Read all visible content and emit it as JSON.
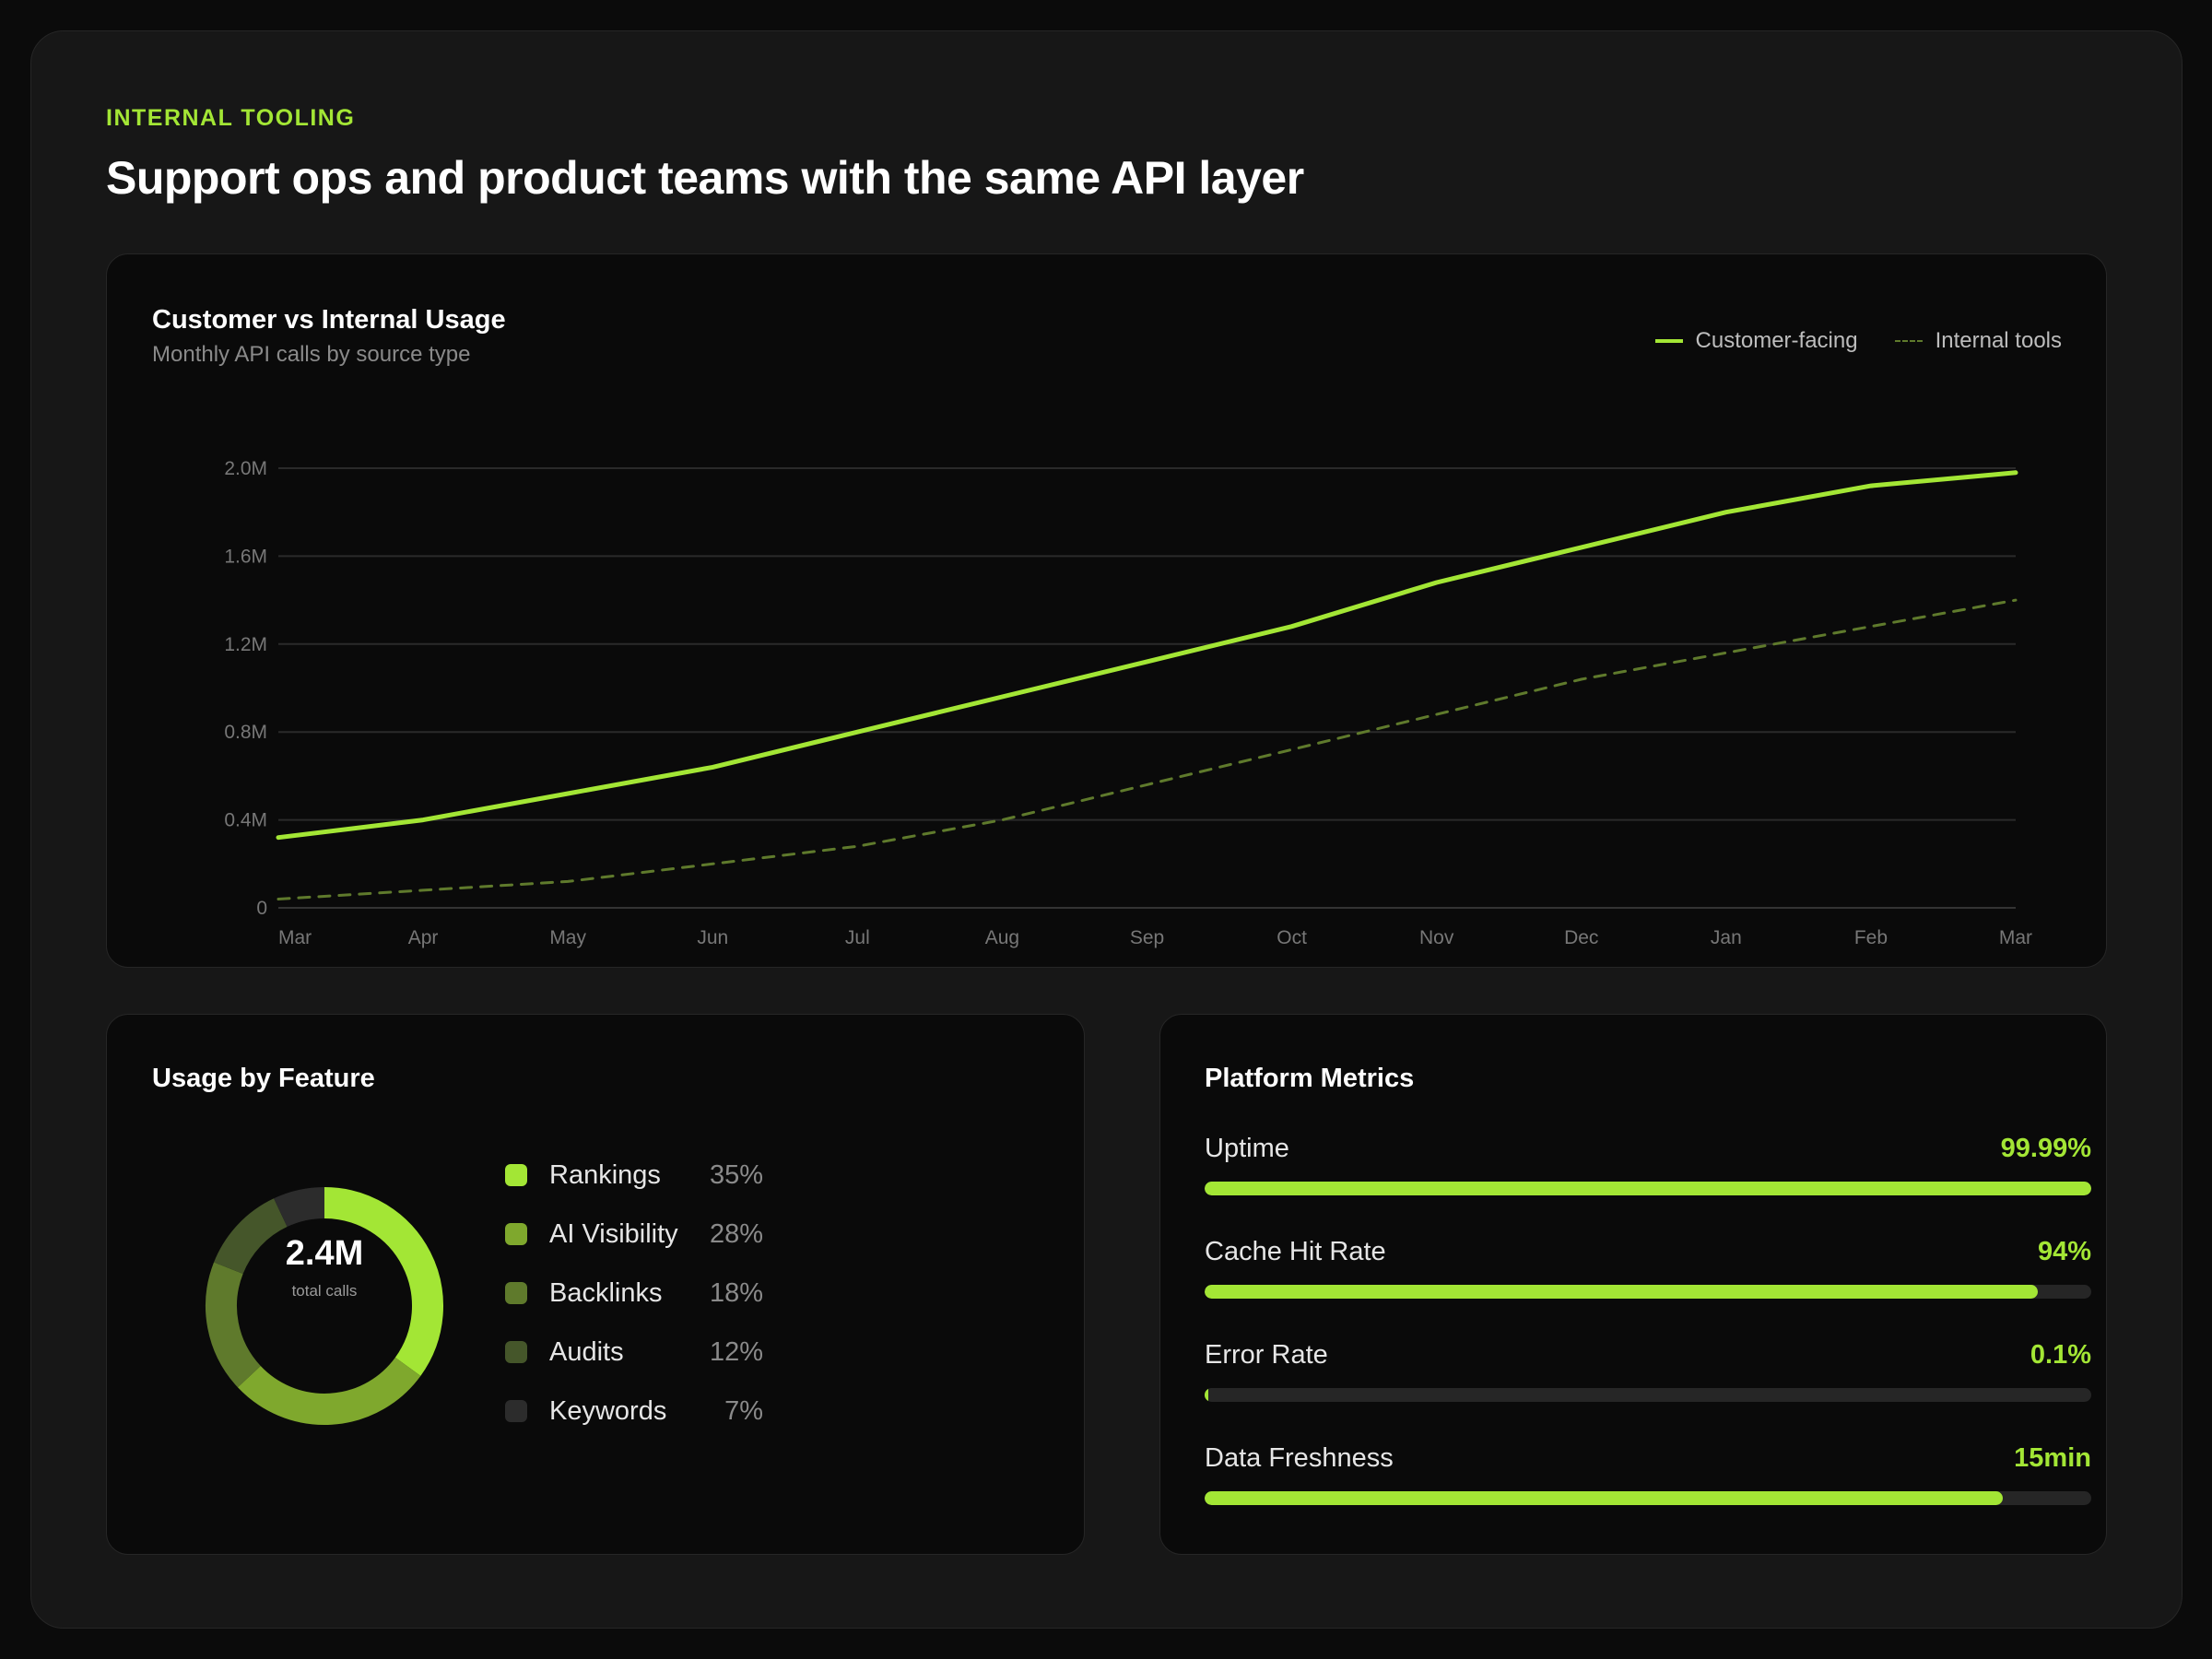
{
  "header": {
    "eyebrow": "INTERNAL TOOLING",
    "title": "Support ops and product teams with the same API layer"
  },
  "usage_chart": {
    "title": "Customer vs Internal Usage",
    "subtitle": "Monthly API calls by source type",
    "legend": {
      "customer": "Customer-facing",
      "internal": "Internal tools"
    }
  },
  "feature_panel": {
    "title": "Usage by Feature",
    "total_value": "2.4M",
    "total_caption": "total calls",
    "items": [
      {
        "label": "Rankings",
        "pct": "35%",
        "color": "#a3e635"
      },
      {
        "label": "AI Visibility",
        "pct": "28%",
        "color": "#7fa82d"
      },
      {
        "label": "Backlinks",
        "pct": "18%",
        "color": "#5f7a2c"
      },
      {
        "label": "Audits",
        "pct": "12%",
        "color": "#45562a"
      },
      {
        "label": "Keywords",
        "pct": "7%",
        "color": "#2c2c2c"
      }
    ]
  },
  "metrics_panel": {
    "title": "Platform Metrics",
    "items": [
      {
        "label": "Uptime",
        "value": "99.99%",
        "fill": 0.9999
      },
      {
        "label": "Cache Hit Rate",
        "value": "94%",
        "fill": 0.94
      },
      {
        "label": "Error Rate",
        "value": "0.1%",
        "fill": 0.001
      },
      {
        "label": "Data Freshness",
        "value": "15min",
        "fill": 0.9
      }
    ]
  },
  "colors": {
    "accent": "#a3e635",
    "internal_line": "#5f7a2c",
    "grid": "#2a2a2a"
  },
  "chart_data": [
    {
      "type": "line",
      "title": "Customer vs Internal Usage",
      "subtitle": "Monthly API calls by source type",
      "x": [
        "Mar",
        "Apr",
        "May",
        "Jun",
        "Jul",
        "Aug",
        "Sep",
        "Oct",
        "Nov",
        "Dec",
        "Jan",
        "Feb",
        "Mar"
      ],
      "yticks": [
        "0",
        "0.4M",
        "0.8M",
        "1.2M",
        "1.6M",
        "2.0M"
      ],
      "ytick_values": [
        0,
        0.4,
        0.8,
        1.2,
        1.6,
        2.0
      ],
      "ylim": [
        0,
        2.0
      ],
      "y_unit": "millions of API calls",
      "grid": true,
      "legend_position": "top-right",
      "series": [
        {
          "name": "Customer-facing",
          "style": "solid",
          "color": "#a3e635",
          "values": [
            0.32,
            0.4,
            0.52,
            0.64,
            0.8,
            0.96,
            1.12,
            1.28,
            1.48,
            1.64,
            1.8,
            1.92,
            1.98
          ]
        },
        {
          "name": "Internal tools",
          "style": "dashed",
          "color": "#5f7a2c",
          "values": [
            0.04,
            0.08,
            0.12,
            0.2,
            0.28,
            0.4,
            0.56,
            0.72,
            0.88,
            1.04,
            1.16,
            1.28,
            1.4
          ]
        }
      ]
    },
    {
      "type": "pie",
      "title": "Usage by Feature",
      "center_value": "2.4M",
      "center_caption": "total calls",
      "categories": [
        "Rankings",
        "AI Visibility",
        "Backlinks",
        "Audits",
        "Keywords"
      ],
      "values": [
        35,
        28,
        18,
        12,
        7
      ],
      "colors": [
        "#a3e635",
        "#7fa82d",
        "#5f7a2c",
        "#45562a",
        "#2c2c2c"
      ]
    }
  ]
}
